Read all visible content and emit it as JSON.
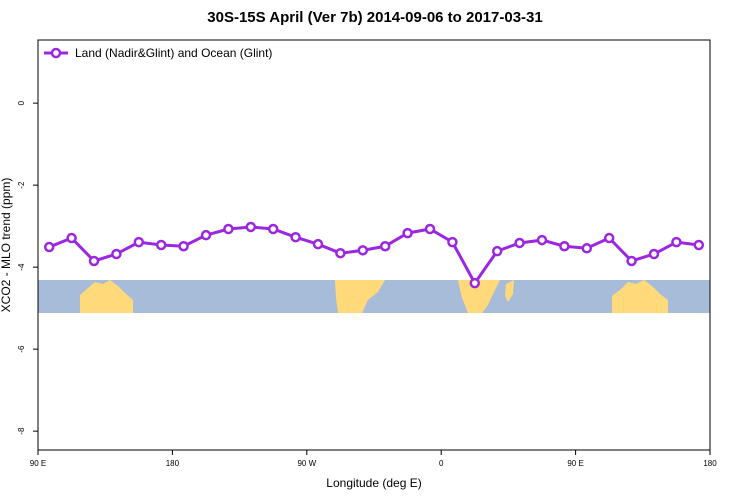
{
  "chart_data": {
    "type": "line",
    "title": "30S-15S April (Ver 7b)   2014-09-06 to 2017-03-31",
    "x_label": "Longitude (deg E)",
    "y_label": "XCO2 - MLO trend (ppm)",
    "x": [
      97.5,
      112.5,
      127.5,
      142.5,
      157.5,
      172.5,
      187.5,
      202.5,
      217.5,
      232.5,
      247.5,
      262.5,
      277.5,
      292.5,
      307.5,
      322.5,
      337.5,
      352.5,
      367.5,
      382.5,
      397.5,
      412.5,
      427.5,
      442.5,
      457.5,
      472.5,
      487.5,
      502.5,
      517.5,
      532.5
    ],
    "series": [
      {
        "name": "Land (Nadir&Glint) and Ocean (Glint)",
        "color": "#9b27e0",
        "values": [
          -3.51,
          -3.29,
          -3.85,
          -3.68,
          -3.39,
          -3.46,
          -3.49,
          -3.22,
          -3.07,
          -3.02,
          -3.07,
          -3.27,
          -3.44,
          -3.66,
          -3.59,
          -3.49,
          -3.17,
          -3.07,
          -3.39,
          -4.39,
          -3.61,
          -3.41,
          -3.34,
          -3.49,
          -3.54,
          -3.29,
          -3.85,
          -3.68,
          -3.39,
          -3.46
        ]
      }
    ],
    "xlim": [
      90,
      540
    ],
    "xticks": [
      {
        "value": 90,
        "label": "90 E"
      },
      {
        "value": 180,
        "label": "180"
      },
      {
        "value": 270,
        "label": "90 W"
      },
      {
        "value": 360,
        "label": "0"
      },
      {
        "value": 450,
        "label": "90 E"
      },
      {
        "value": 540,
        "label": "180"
      }
    ],
    "ylim": [
      -8.46,
      1.54
    ],
    "yticks": [
      0,
      -2,
      -4,
      -6,
      -8
    ],
    "legend": "top-left"
  }
}
